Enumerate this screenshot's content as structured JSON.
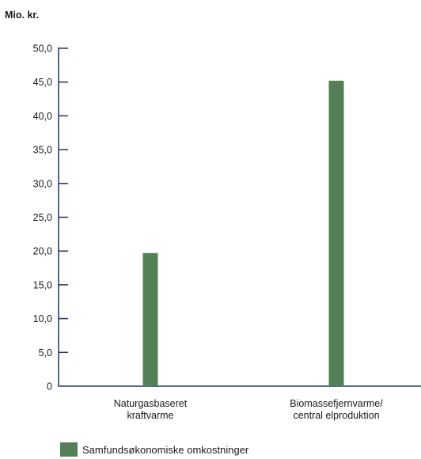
{
  "chart_data": {
    "type": "bar",
    "ylabel": "Mio. kr.",
    "categories": [
      [
        "Naturgasbaseret",
        "kraftvarme"
      ],
      [
        "Biomassefjernvarme/",
        "central elproduktion"
      ]
    ],
    "series": [
      {
        "name": "Samfundsøkonomiske omkostninger",
        "values": [
          19.7,
          45.2
        ]
      }
    ],
    "ylim": [
      0,
      50
    ],
    "yticks": [
      "0",
      "5,0",
      "10,0",
      "15,0",
      "20,0",
      "25,0",
      "30,0",
      "35,0",
      "40,0",
      "45,0",
      "50,0"
    ],
    "grid": false,
    "legend_position": "bottom-left"
  },
  "colors": {
    "bar": "#548057",
    "axis": "#1f3566",
    "text": "#1a1a1a"
  }
}
